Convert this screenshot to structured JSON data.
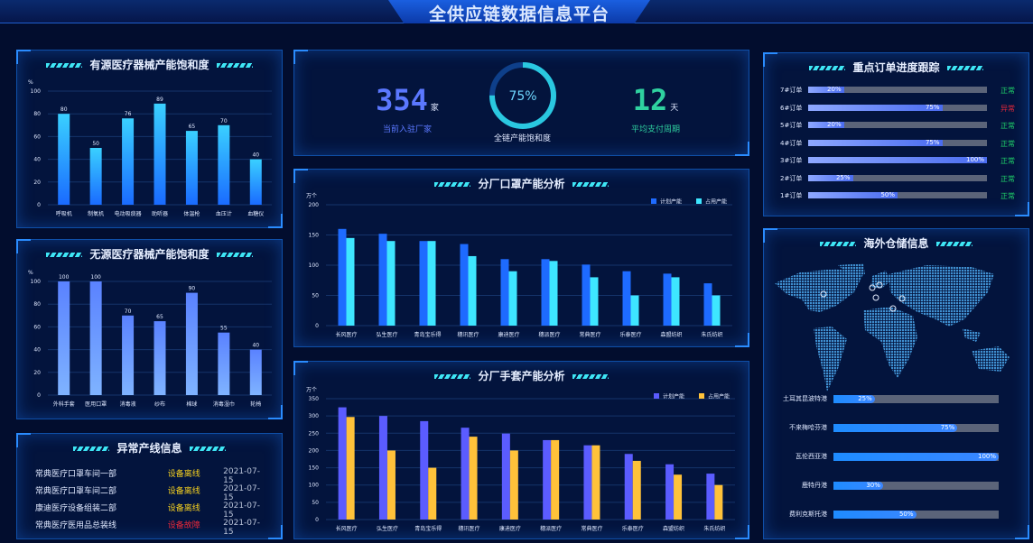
{
  "header": {
    "title": "全供应链数据信息平台"
  },
  "active_devices": {
    "title": "有源医疗器械产能饱和度",
    "unit": "%",
    "ylim": [
      0,
      100
    ],
    "ticks": [
      0,
      20,
      40,
      60,
      80,
      100
    ],
    "chart_data": {
      "type": "bar",
      "categories": [
        "呼吸机",
        "制氧机",
        "电动吸痰器",
        "助听器",
        "体温枪",
        "血压计",
        "血糖仪"
      ],
      "values": [
        80,
        50,
        76,
        89,
        65,
        70,
        40
      ],
      "ylabel": "%",
      "ylim": [
        0,
        100
      ]
    },
    "colors": [
      "#3ad0ff",
      "#1a6bff"
    ]
  },
  "passive_devices": {
    "title": "无源医疗器械产能饱和度",
    "unit": "%",
    "ticks": [
      0,
      20,
      40,
      60,
      80,
      100
    ],
    "chart_data": {
      "type": "bar",
      "categories": [
        "外科手套",
        "医用口罩",
        "消毒液",
        "纱布",
        "棉球",
        "消毒湿巾",
        "轮椅"
      ],
      "values": [
        100,
        100,
        70,
        65,
        90,
        55,
        40
      ],
      "ylabel": "%",
      "ylim": [
        0,
        100
      ]
    },
    "colors": [
      "#5a82ff",
      "#7fb3ff"
    ]
  },
  "abnormal": {
    "title": "异常产线信息",
    "rows": [
      {
        "name": "常典医疗口罩车间一部",
        "status": "设备离线",
        "date": "2021-07-15",
        "color": "#f5d020"
      },
      {
        "name": "常典医疗口罩车间二部",
        "status": "设备离线",
        "date": "2021-07-15",
        "color": "#f5d020"
      },
      {
        "name": "康迪医疗设备组装二部",
        "status": "设备离线",
        "date": "2021-07-15",
        "color": "#f5d020"
      },
      {
        "name": "常典医疗医用品总装线",
        "status": "设备故障",
        "date": "2021-07-15",
        "color": "#e8283a"
      }
    ]
  },
  "kpis": {
    "factories": {
      "value": "354",
      "unit": "家",
      "label": "当前入驻厂家"
    },
    "saturation": {
      "value": "75%",
      "label": "全链产能饱和度",
      "percent": 75
    },
    "payment": {
      "value": "12",
      "unit": "天",
      "label": "平均支付周期"
    }
  },
  "mask_chart": {
    "title": "分厂口罩产能分析",
    "unit": "万个",
    "ticks": [
      0,
      50,
      100,
      150,
      200
    ],
    "chart_data": {
      "type": "bar",
      "categories": [
        "长风医疗",
        "弘生医疗",
        "青岛宝乐得",
        "穗讯医疗",
        "康迪医疗",
        "穗派医疗",
        "常典医疗",
        "乐泰医疗",
        "森盟纺织",
        "朱氏纺织"
      ],
      "series": [
        {
          "name": "计划产能",
          "values": [
            160,
            152,
            140,
            135,
            110,
            110,
            101,
            90,
            86,
            70
          ],
          "color": "#1e6bff"
        },
        {
          "name": "占用产能",
          "values": [
            145,
            140,
            140,
            115,
            90,
            107,
            80,
            50,
            80,
            50
          ],
          "color": "#3ee6ff"
        }
      ],
      "ylabel": "万个",
      "ylim": [
        0,
        200
      ],
      "legend": "top-right"
    }
  },
  "glove_chart": {
    "title": "分厂手套产能分析",
    "unit": "万个",
    "ticks": [
      0,
      50,
      100,
      150,
      200,
      250,
      300,
      350
    ],
    "chart_data": {
      "type": "bar",
      "categories": [
        "长风医疗",
        "弘生医疗",
        "青岛宝乐得",
        "穗讯医疗",
        "康迪医疗",
        "穗派医疗",
        "常典医疗",
        "乐泰医疗",
        "森盟纺织",
        "朱氏纺织"
      ],
      "series": [
        {
          "name": "计划产能",
          "values": [
            325,
            300,
            285,
            266,
            249,
            230,
            215,
            190,
            160,
            133
          ],
          "color": "#5b5cff"
        },
        {
          "name": "占用产能",
          "values": [
            297,
            200,
            150,
            240,
            200,
            230,
            215,
            170,
            130,
            100
          ],
          "color": "#ffc23a"
        }
      ],
      "ylabel": "万个",
      "ylim": [
        0,
        350
      ],
      "legend": "top-right"
    }
  },
  "orders": {
    "title": "重点订单进度跟踪",
    "rows": [
      {
        "name": "7#订单",
        "percent": 20,
        "label": "20%",
        "status": "正常",
        "color": "#1fd36a"
      },
      {
        "name": "6#订单",
        "percent": 75,
        "label": "75%",
        "status": "异常",
        "color": "#e8283a"
      },
      {
        "name": "5#订单",
        "percent": 20,
        "label": "20%",
        "status": "正常",
        "color": "#1fd36a"
      },
      {
        "name": "4#订单",
        "percent": 75,
        "label": "75%",
        "status": "正常",
        "color": "#1fd36a"
      },
      {
        "name": "3#订单",
        "percent": 100,
        "label": "100%",
        "status": "正常",
        "color": "#1fd36a"
      },
      {
        "name": "2#订单",
        "percent": 25,
        "label": "25%",
        "status": "正常",
        "color": "#1fd36a"
      },
      {
        "name": "1#订单",
        "percent": 50,
        "label": "50%",
        "status": "正常",
        "color": "#1fd36a"
      }
    ]
  },
  "warehouse": {
    "title": "海外仓储信息",
    "rows": [
      {
        "name": "土耳其昆波特港",
        "percent": 25,
        "label": "25%"
      },
      {
        "name": "不来梅哈芬港",
        "percent": 75,
        "label": "75%"
      },
      {
        "name": "瓦伦西亚港",
        "percent": 100,
        "label": "100%"
      },
      {
        "name": "鹿特丹港",
        "percent": 30,
        "label": "30%"
      },
      {
        "name": "费利克斯托港",
        "percent": 50,
        "label": "50%"
      }
    ]
  }
}
